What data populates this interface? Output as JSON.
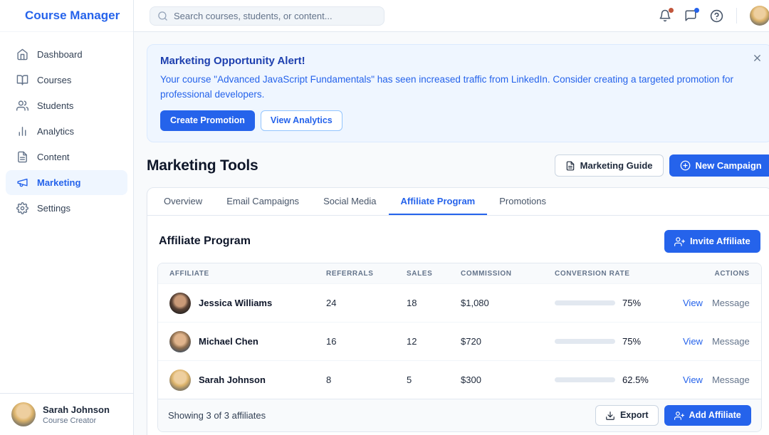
{
  "app": {
    "title": "Course Manager"
  },
  "topbar": {
    "search_placeholder": "Search courses, students, or content..."
  },
  "sidebar": {
    "items": [
      {
        "label": "Dashboard",
        "icon": "home-icon",
        "active": false
      },
      {
        "label": "Courses",
        "icon": "book-icon",
        "active": false
      },
      {
        "label": "Students",
        "icon": "users-icon",
        "active": false
      },
      {
        "label": "Analytics",
        "icon": "bar-chart-icon",
        "active": false
      },
      {
        "label": "Content",
        "icon": "file-icon",
        "active": false
      },
      {
        "label": "Marketing",
        "icon": "megaphone-icon",
        "active": true
      },
      {
        "label": "Settings",
        "icon": "gear-icon",
        "active": false
      }
    ],
    "user": {
      "name": "Sarah Johnson",
      "role": "Course Creator"
    }
  },
  "alert": {
    "title": "Marketing Opportunity Alert!",
    "message": "Your course \"Advanced JavaScript Fundamentals\" has seen increased traffic from LinkedIn. Consider creating a targeted promotion for professional developers.",
    "primary_button": "Create Promotion",
    "secondary_button": "View Analytics"
  },
  "page": {
    "title": "Marketing Tools",
    "guide_button": "Marketing Guide",
    "new_campaign_button": "New Campaign"
  },
  "tabs": {
    "items": [
      "Overview",
      "Email Campaigns",
      "Social Media",
      "Affiliate Program",
      "Promotions"
    ],
    "active": "Affiliate Program"
  },
  "affiliate_section": {
    "title": "Affiliate Program",
    "invite_button": "Invite Affiliate",
    "table": {
      "columns": [
        "Affiliate",
        "Referrals",
        "Sales",
        "Commission",
        "Conversion Rate",
        "Actions"
      ],
      "rows": [
        {
          "name": "Jessica Williams",
          "referrals": "24",
          "sales": "18",
          "commission": "$1,080",
          "conversion_rate": "75%",
          "conversion_pct": 75,
          "view_label": "View",
          "message_label": "Message"
        },
        {
          "name": "Michael Chen",
          "referrals": "16",
          "sales": "12",
          "commission": "$720",
          "conversion_rate": "75%",
          "conversion_pct": 75,
          "view_label": "View",
          "message_label": "Message"
        },
        {
          "name": "Sarah Johnson",
          "referrals": "8",
          "sales": "5",
          "commission": "$300",
          "conversion_rate": "62.5%",
          "conversion_pct": 62.5,
          "view_label": "View",
          "message_label": "Message"
        }
      ],
      "footer": {
        "summary": "Showing 3 of 3 affiliates",
        "export_button": "Export",
        "add_button": "Add Affiliate"
      }
    }
  },
  "colors": {
    "accent": "#2563eb",
    "alert_title": "#1e40af",
    "alert_bg": "#eff6ff",
    "progress_green": "#10b981",
    "notification_dot": "#c2563c",
    "message_dot": "#2563eb"
  }
}
